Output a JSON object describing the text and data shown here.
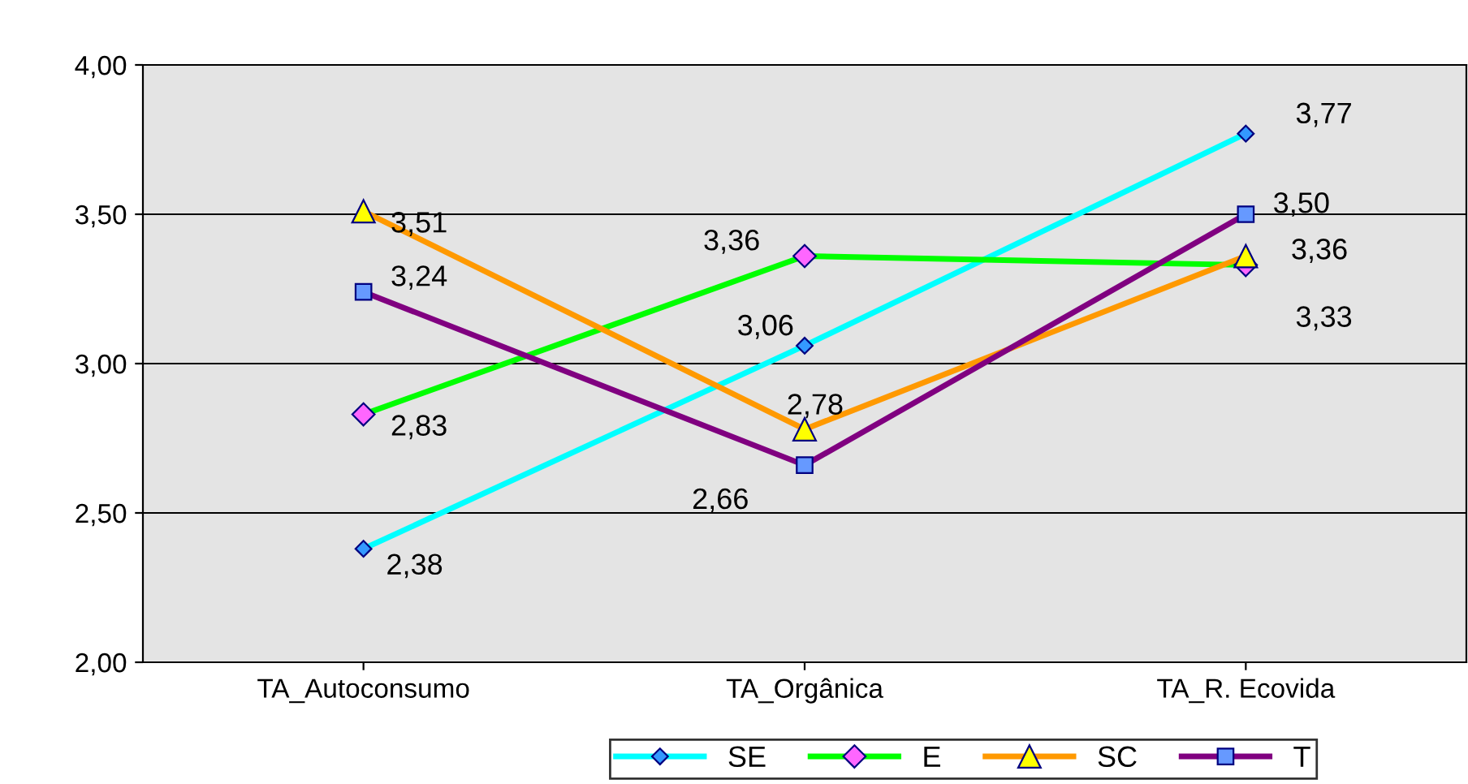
{
  "chart_data": {
    "type": "line",
    "categories": [
      "TA_Autoconsumo",
      "TA_Orgânica",
      "TA_R. Ecovida"
    ],
    "series": [
      {
        "name": "SE",
        "color": "#00ffff",
        "marker": "diamond",
        "values": [
          2.38,
          3.06,
          3.77
        ],
        "value_labels": [
          "2,38",
          "3,06",
          "3,77"
        ]
      },
      {
        "name": "E",
        "color": "#00ff00",
        "marker": "diamond",
        "values": [
          2.83,
          3.36,
          3.33
        ],
        "value_labels": [
          "2,83",
          "3,36",
          "3,33"
        ]
      },
      {
        "name": "SC",
        "color": "#ff9900",
        "marker": "triangle",
        "values": [
          3.51,
          2.78,
          3.36
        ],
        "value_labels": [
          "3,51",
          "2,78",
          "3,36"
        ]
      },
      {
        "name": "T",
        "color": "#800080",
        "marker": "square",
        "values": [
          3.24,
          2.66,
          3.5
        ],
        "value_labels": [
          "3,24",
          "2,66",
          "3,50"
        ]
      }
    ],
    "ylim": [
      2,
      4
    ],
    "yticks": [
      {
        "value": 2,
        "label": "2,00"
      },
      {
        "value": 2.5,
        "label": "2,50"
      },
      {
        "value": 3,
        "label": "3,00"
      },
      {
        "value": 3.5,
        "label": "3,50"
      },
      {
        "value": 4,
        "label": "4,00"
      }
    ],
    "grid": "y",
    "legend": "bottom",
    "line_style": "solid"
  }
}
